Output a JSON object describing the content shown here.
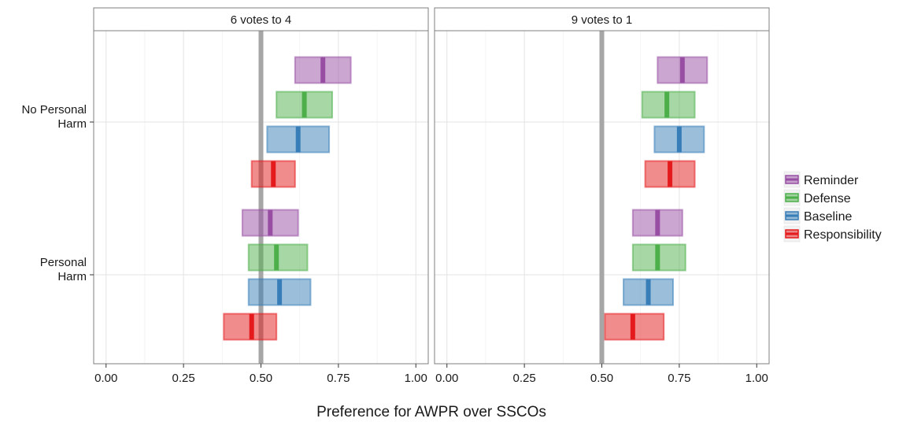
{
  "chart_data": {
    "type": "crossbar",
    "xlabel": "Preference for AWPR over SSCOs",
    "ylabel": "",
    "xlim": [
      -0.04,
      1.04
    ],
    "x_ticks": [
      0,
      0.25,
      0.5,
      0.75,
      1.0
    ],
    "x_tick_labels": [
      "0.00",
      "0.25",
      "0.50",
      "0.75",
      "1.00"
    ],
    "reference_line": 0.5,
    "grid": true,
    "legend_position": "right",
    "y_categories": [
      {
        "key": "no_harm",
        "label_lines": [
          "No Personal",
          "Harm"
        ]
      },
      {
        "key": "harm",
        "label_lines": [
          "Personal",
          "Harm"
        ]
      }
    ],
    "series": [
      {
        "name": "Reminder",
        "color": "#984ea3"
      },
      {
        "name": "Defense",
        "color": "#4daf4a"
      },
      {
        "name": "Baseline",
        "color": "#377eb8"
      },
      {
        "name": "Responsibility",
        "color": "#e41a1c"
      }
    ],
    "panels": [
      {
        "title": "6 votes to 4",
        "groups": {
          "no_harm": [
            {
              "series": "Reminder",
              "low": 0.61,
              "mid": 0.7,
              "high": 0.79
            },
            {
              "series": "Defense",
              "low": 0.55,
              "mid": 0.64,
              "high": 0.73
            },
            {
              "series": "Baseline",
              "low": 0.52,
              "mid": 0.62,
              "high": 0.72
            },
            {
              "series": "Responsibility",
              "low": 0.47,
              "mid": 0.54,
              "high": 0.61
            }
          ],
          "harm": [
            {
              "series": "Reminder",
              "low": 0.44,
              "mid": 0.53,
              "high": 0.62
            },
            {
              "series": "Defense",
              "low": 0.46,
              "mid": 0.55,
              "high": 0.65
            },
            {
              "series": "Baseline",
              "low": 0.46,
              "mid": 0.56,
              "high": 0.66
            },
            {
              "series": "Responsibility",
              "low": 0.38,
              "mid": 0.47,
              "high": 0.55
            }
          ]
        }
      },
      {
        "title": "9 votes to 1",
        "groups": {
          "no_harm": [
            {
              "series": "Reminder",
              "low": 0.68,
              "mid": 0.76,
              "high": 0.84
            },
            {
              "series": "Defense",
              "low": 0.63,
              "mid": 0.71,
              "high": 0.8
            },
            {
              "series": "Baseline",
              "low": 0.67,
              "mid": 0.75,
              "high": 0.83
            },
            {
              "series": "Responsibility",
              "low": 0.64,
              "mid": 0.72,
              "high": 0.8
            }
          ],
          "harm": [
            {
              "series": "Reminder",
              "low": 0.6,
              "mid": 0.68,
              "high": 0.76
            },
            {
              "series": "Defense",
              "low": 0.6,
              "mid": 0.68,
              "high": 0.77
            },
            {
              "series": "Baseline",
              "low": 0.57,
              "mid": 0.65,
              "high": 0.73
            },
            {
              "series": "Responsibility",
              "low": 0.51,
              "mid": 0.6,
              "high": 0.7
            }
          ]
        }
      }
    ]
  }
}
